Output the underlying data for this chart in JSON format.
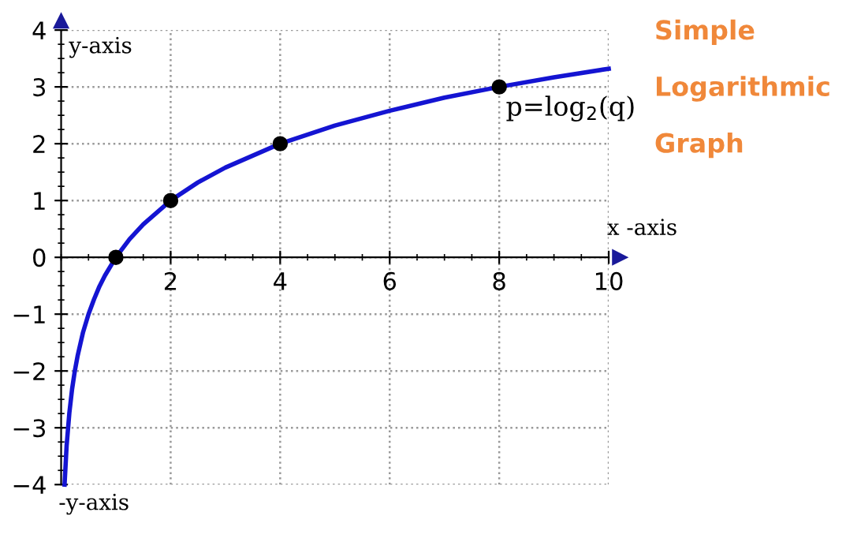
{
  "chart_data": {
    "type": "line",
    "title": "Simple Logarithmic Graph",
    "series": [
      {
        "color": "#1414d2",
        "x": [
          0.0625,
          0.1,
          0.15,
          0.2,
          0.25,
          0.3,
          0.4,
          0.5,
          0.6,
          0.7,
          0.8,
          1,
          1.25,
          1.5,
          2,
          2.5,
          3,
          4,
          5,
          6,
          7,
          8,
          9,
          10
        ],
        "values": [
          -4,
          -3.32,
          -2.74,
          -2.32,
          -2,
          -1.74,
          -1.32,
          -1,
          -0.74,
          -0.51,
          -0.32,
          0,
          0.32,
          0.58,
          1,
          1.32,
          1.58,
          2,
          2.32,
          2.58,
          2.81,
          3,
          3.17,
          3.32
        ],
        "marker": "none"
      },
      {
        "type": "scatter",
        "color": "#000000",
        "x": [
          1,
          2,
          4,
          8
        ],
        "values": [
          0,
          1,
          2,
          3
        ],
        "marker": "circle"
      }
    ],
    "xlim": [
      0,
      10
    ],
    "ylim": [
      -4,
      4
    ],
    "xticks": [
      2,
      4,
      6,
      8,
      10
    ],
    "yticks": [
      -4,
      -3,
      -2,
      -1,
      0,
      1,
      2,
      3,
      4
    ],
    "grid": true,
    "line_style": "solid",
    "annotations": [
      "y-axis",
      "x -axis",
      "-y-axis",
      {
        "text": "p=log$_{2}$(q)",
        "x": 8,
        "y": 3
      }
    ]
  }
}
